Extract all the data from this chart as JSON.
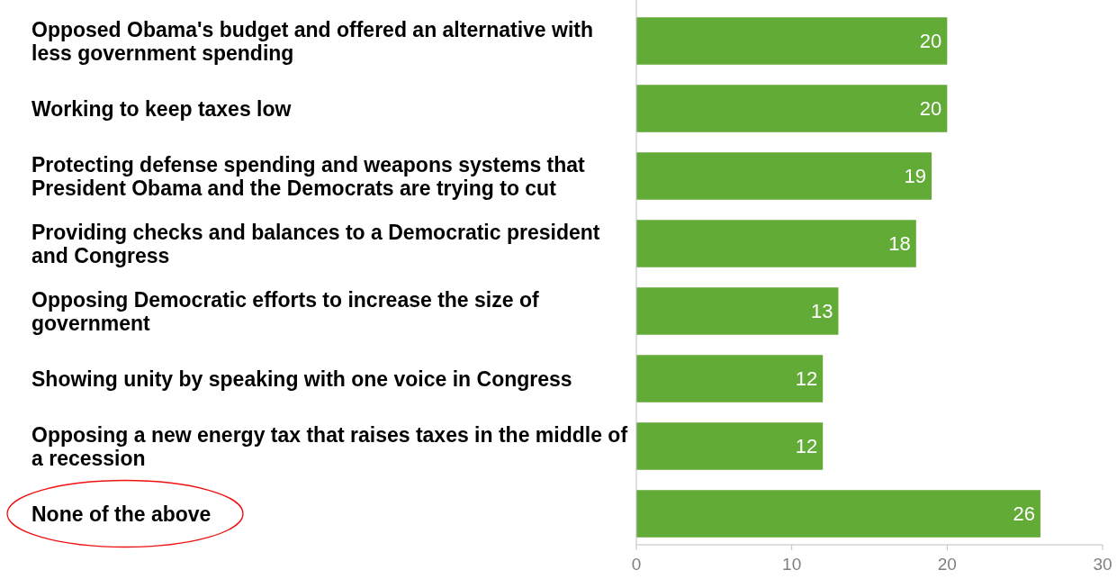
{
  "chart_data": {
    "type": "bar",
    "orientation": "horizontal",
    "categories": [
      "Opposed Obama's budget and offered an alternative with less government spending",
      "Working to keep taxes low",
      "Protecting defense spending and weapons systems that President Obama and the Democrats are trying to cut",
      "Providing checks and balances to a Democratic president and Congress",
      "Opposing Democratic efforts to increase the size of government",
      "Showing unity by speaking with one voice in Congress",
      "Opposing a new energy tax that raises taxes in the middle of a recession",
      "None of the above"
    ],
    "values": [
      20,
      20,
      19,
      18,
      13,
      12,
      12,
      26
    ],
    "color": "#62ab37",
    "xlim": [
      0,
      30
    ],
    "xticks": [
      0,
      10,
      20,
      30
    ],
    "data_labels": true,
    "grid": false
  }
}
